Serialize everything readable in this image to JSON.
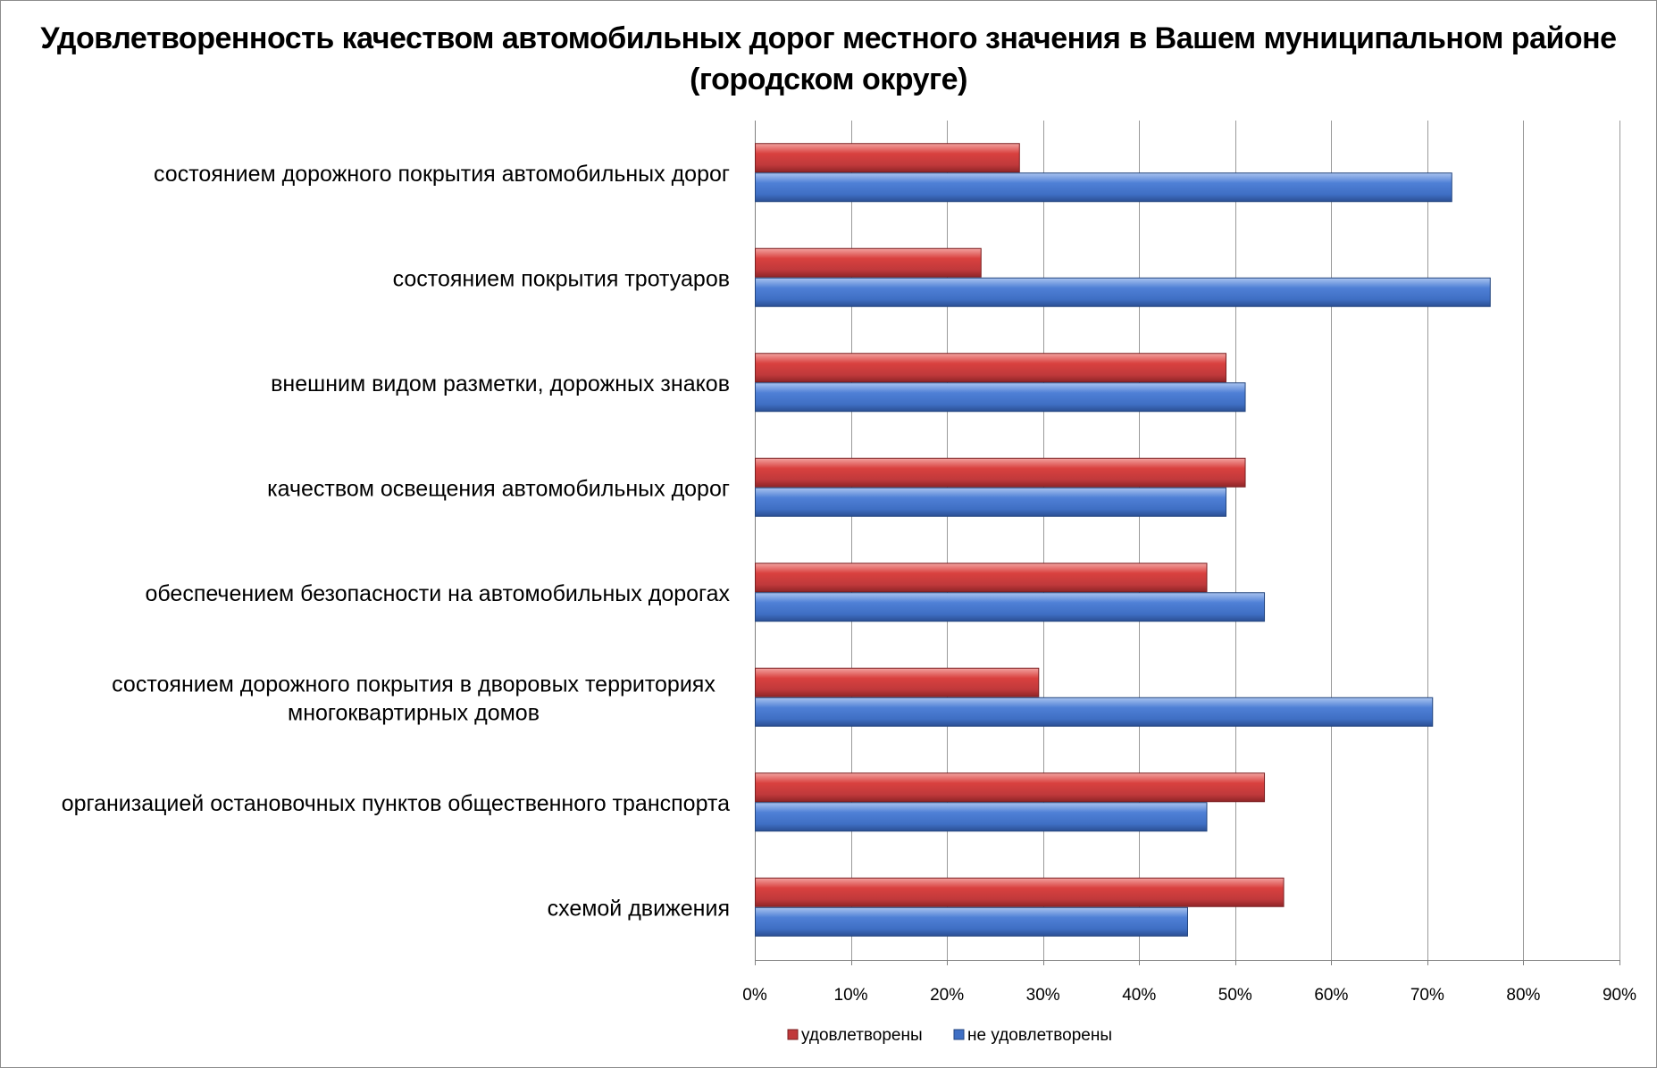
{
  "chart_data": {
    "type": "bar",
    "orientation": "horizontal",
    "title": "Удовлетворенность качеством автомобильных дорог местного значения в Вашем муниципальном районе (городском округе)",
    "xlabel": "",
    "ylabel": "",
    "categories": [
      "состоянием дорожного покрытия автомобильных дорог",
      "состоянием покрытия тротуаров",
      "внешним видом разметки, дорожных знаков",
      "качеством освещения автомобильных дорог",
      "обеспечением безопасности на автомобильных дорогах",
      "состоянием дорожного покрытия в дворовых территориях многоквартирных домов",
      "организацией остановочных пунктов общественного транспорта",
      "схемой движения"
    ],
    "series": [
      {
        "name": "удовлетворены",
        "color": "#c0393b",
        "values": [
          27.5,
          23.5,
          49,
          51,
          47,
          29.5,
          53,
          55
        ]
      },
      {
        "name": "не удовлетворены",
        "color": "#3f6fc4",
        "values": [
          72.5,
          76.5,
          51,
          49,
          53,
          70.5,
          47,
          45
        ]
      }
    ],
    "xlim": [
      0,
      90
    ],
    "ticks": [
      "0%",
      "10%",
      "20%",
      "30%",
      "40%",
      "50%",
      "60%",
      "70%",
      "80%",
      "90%"
    ],
    "grid": true,
    "legend_position": "bottom"
  }
}
